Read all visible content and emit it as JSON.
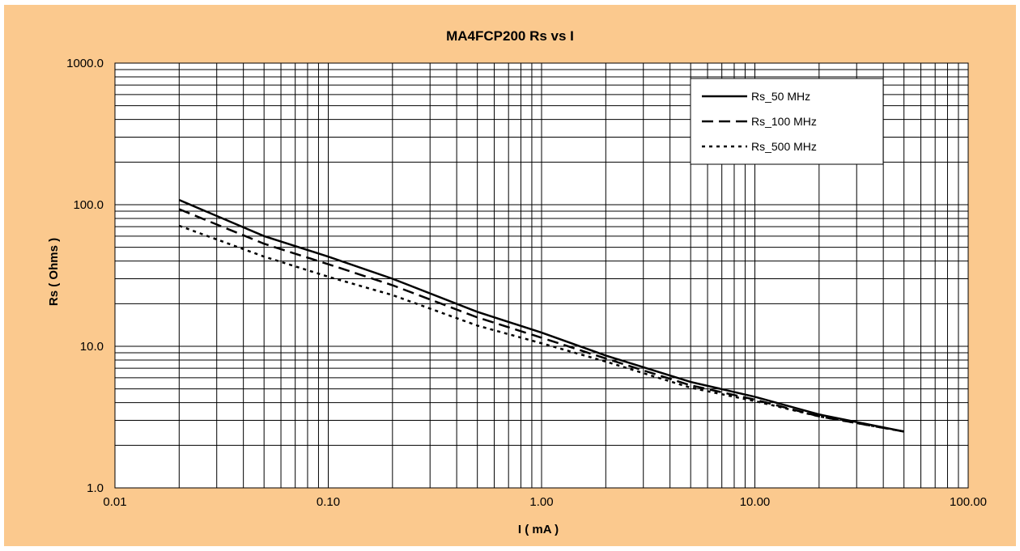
{
  "chart_data": {
    "type": "line",
    "title": "MA4FCP200  Rs vs I",
    "xlabel": "I ( mA )",
    "ylabel": "Rs ( Ohms )",
    "xscale": "log",
    "yscale": "log",
    "xlim": [
      0.01,
      100
    ],
    "ylim": [
      1,
      1000
    ],
    "xticks": [
      "0.01",
      "0.10",
      "1.00",
      "10.00",
      "100.00"
    ],
    "yticks": [
      "1.0",
      "10.0",
      "100.0",
      "1000.0"
    ],
    "grid": true,
    "legend_position": "top-right",
    "series": [
      {
        "name": "Rs_50 MHz",
        "style": "solid",
        "color": "#000000",
        "x": [
          0.02,
          0.05,
          0.1,
          0.2,
          0.5,
          1,
          2,
          5,
          10,
          20,
          50
        ],
        "y": [
          108,
          60,
          43,
          30,
          17.5,
          12.5,
          8.6,
          5.6,
          4.4,
          3.3,
          2.5
        ]
      },
      {
        "name": "Rs_100 MHz",
        "style": "dashed",
        "color": "#000000",
        "x": [
          0.02,
          0.05,
          0.1,
          0.2,
          0.5,
          1,
          2,
          5,
          10,
          20,
          50
        ],
        "y": [
          93,
          53,
          38,
          27,
          16,
          11.5,
          8.2,
          5.3,
          4.2,
          3.2,
          2.5
        ]
      },
      {
        "name": "Rs_500 MHz",
        "style": "dotted",
        "color": "#000000",
        "x": [
          0.02,
          0.05,
          0.1,
          0.2,
          0.5,
          1,
          2,
          5,
          10,
          20,
          50
        ],
        "y": [
          71,
          43,
          31,
          23,
          14,
          10.5,
          7.8,
          5.1,
          4.1,
          3.2,
          2.5
        ]
      }
    ]
  },
  "colors": {
    "background": "#fbc98e",
    "plot_area": "#ffffff",
    "grid": "#000000"
  }
}
